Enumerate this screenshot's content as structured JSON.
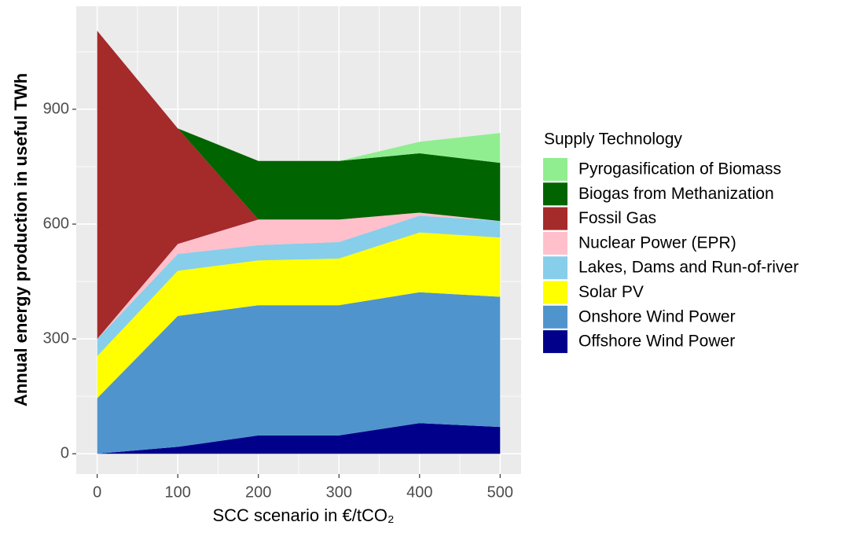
{
  "chart_data": {
    "type": "stacked_area",
    "x": [
      0,
      100,
      200,
      300,
      400,
      500
    ],
    "xlabel": "SCC scenario in €/tCO₂",
    "ylabel": "Annual energy production in useful TWh",
    "legend_title": "Supply Technology",
    "legend": "right",
    "grid": true,
    "xlim": [
      -26,
      526
    ],
    "xticks": [
      0,
      100,
      200,
      300,
      400,
      500
    ],
    "ylim": [
      -53,
      1169
    ],
    "yticks": [
      0,
      300,
      600,
      900
    ],
    "series": [
      {
        "name": "Offshore Wind Power",
        "color": "#00008b",
        "values": [
          0,
          18,
          48,
          48,
          80,
          70
        ]
      },
      {
        "name": "Onshore Wind Power",
        "color": "#4f94cd",
        "values": [
          145,
          342,
          340,
          340,
          342,
          340
        ]
      },
      {
        "name": "Solar PV",
        "color": "#ffff00",
        "values": [
          110,
          118,
          117,
          122,
          156,
          155
        ]
      },
      {
        "name": "Lakes, Dams and Run-of-river",
        "color": "#87ceeb",
        "values": [
          45,
          44,
          40,
          43,
          44,
          43
        ]
      },
      {
        "name": "Nuclear Power (EPR)",
        "color": "#ffc0cb",
        "values": [
          0,
          26,
          67,
          59,
          8,
          0
        ]
      },
      {
        "name": "Fossil Gas",
        "color": "#a52a2a",
        "values": [
          805,
          302,
          0,
          0,
          0,
          0
        ]
      },
      {
        "name": "Biogas from Methanization",
        "color": "#006400",
        "values": [
          0,
          0,
          153,
          153,
          155,
          152
        ]
      },
      {
        "name": "Pyrogasification of Biomass",
        "color": "#90ee90",
        "values": [
          0,
          0,
          0,
          0,
          30,
          78
        ]
      }
    ]
  }
}
